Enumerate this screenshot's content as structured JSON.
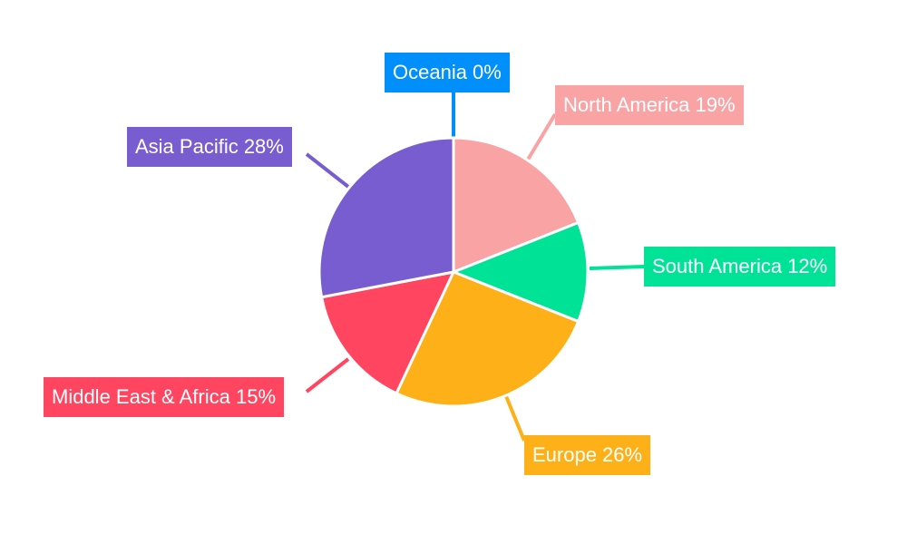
{
  "chart_data": {
    "type": "pie",
    "start_angle": "12 o'clock",
    "direction": "clockwise",
    "legend": "none",
    "slices": [
      {
        "name": "North America",
        "value": 19,
        "label": "North America 19%",
        "color": "#F9A3A4"
      },
      {
        "name": "South America",
        "value": 12,
        "label": "South America 12%",
        "color": "#00E396"
      },
      {
        "name": "Europe",
        "value": 26,
        "label": "Europe 26%",
        "color": "#FEB019"
      },
      {
        "name": "Middle East & Africa",
        "value": 15,
        "label": "Middle East & Africa 15%",
        "color": "#FF4560"
      },
      {
        "name": "Asia Pacific",
        "value": 28,
        "label": "Asia Pacific 28%",
        "color": "#775DD0"
      },
      {
        "name": "Oceania",
        "value": 0,
        "label": "Oceania 0%",
        "color": "#008FFB"
      }
    ]
  }
}
